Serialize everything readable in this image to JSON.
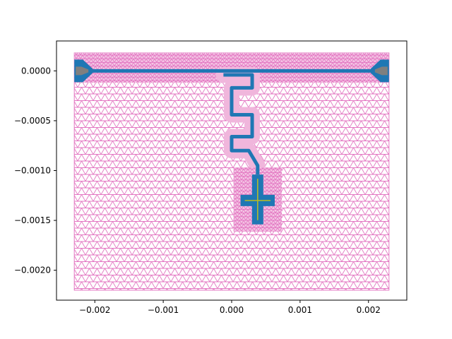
{
  "chart_data": {
    "type": "mesh",
    "title": "",
    "xlabel": "",
    "ylabel": "",
    "xlim": [
      -0.00256,
      0.00256
    ],
    "ylim": [
      -0.0023,
      0.0003
    ],
    "grid": false,
    "xticks": [
      {
        "value": -0.002,
        "label": "−0.002"
      },
      {
        "value": -0.001,
        "label": "−0.001"
      },
      {
        "value": 0.0,
        "label": "0.000"
      },
      {
        "value": 0.001,
        "label": "0.001"
      },
      {
        "value": 0.002,
        "label": "0.002"
      }
    ],
    "yticks": [
      {
        "value": 0.0,
        "label": "0.0000"
      },
      {
        "value": -0.0005,
        "label": "−0.0005"
      },
      {
        "value": -0.001,
        "label": "−0.0010"
      },
      {
        "value": -0.0015,
        "label": "−0.0015"
      },
      {
        "value": -0.002,
        "label": "−0.0020"
      }
    ],
    "colors": {
      "mesh": "#e377c2",
      "metal": "#1f77b4",
      "port": "#7f7f7f",
      "junction": "#bcbd22"
    },
    "mesh_domain": {
      "x": [
        -0.0023,
        0.0023
      ],
      "y": [
        -0.0022,
        0.00018
      ]
    },
    "feedline": {
      "x": [
        -0.0023,
        0.0023
      ],
      "y": 0.0
    },
    "ports": [
      {
        "side": "left",
        "x": -0.0023,
        "y": 0.0
      },
      {
        "side": "right",
        "x": 0.0023,
        "y": 0.0
      }
    ],
    "meander_path": [
      [
        -0.00012,
        -4e-05
      ],
      [
        0.0003,
        -4e-05
      ],
      [
        0.0003,
        -0.00017
      ],
      [
        0.0,
        -0.00017
      ],
      [
        0.0,
        -0.00044
      ],
      [
        0.0003,
        -0.00044
      ],
      [
        0.0003,
        -0.00066
      ],
      [
        0.0,
        -0.00066
      ],
      [
        0.0,
        -0.0008
      ],
      [
        0.00025,
        -0.0008
      ],
      [
        0.00038,
        -0.00095
      ],
      [
        0.00038,
        -0.00104
      ]
    ],
    "cross": {
      "center": [
        0.00038,
        -0.0013
      ],
      "vertical_y": [
        -0.00154,
        -0.00104
      ],
      "horizontal_x": [
        0.00013,
        0.00063
      ]
    }
  }
}
